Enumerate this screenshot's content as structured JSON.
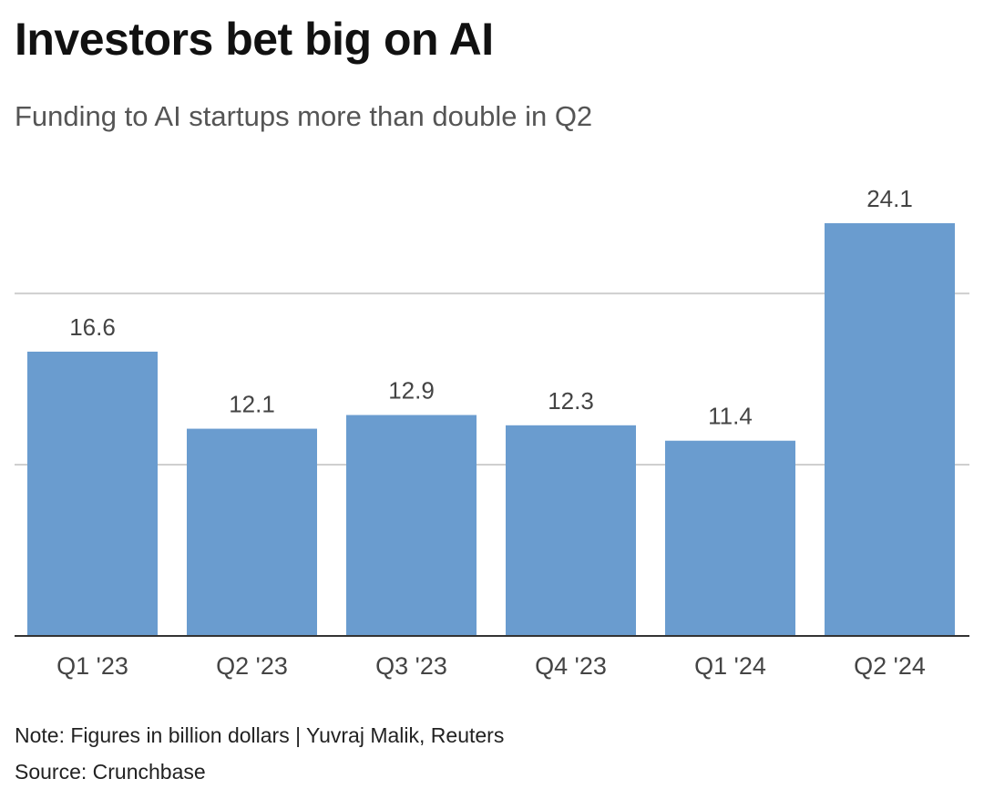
{
  "header": {
    "title": "Investors bet big on AI",
    "subtitle": "Funding to AI startups more than double in Q2"
  },
  "footer": {
    "note": "Note: Figures in billion dollars | Yuvraj Malik, Reuters",
    "source": "Source: Crunchbase"
  },
  "colors": {
    "bar": "#6a9ccf",
    "gridline": "#cfcfcf",
    "axis": "#333333"
  },
  "chart_data": {
    "type": "bar",
    "title": "Investors bet big on AI",
    "subtitle": "Funding to AI startups more than double in Q2",
    "categories": [
      "Q1 '23",
      "Q2 '23",
      "Q3 '23",
      "Q4 '23",
      "Q1 '24",
      "Q2 '24"
    ],
    "values": [
      16.6,
      12.1,
      12.9,
      12.3,
      11.4,
      24.1
    ],
    "value_labels": [
      "16.6",
      "12.1",
      "12.9",
      "12.3",
      "11.4",
      "24.1"
    ],
    "xlabel": "",
    "ylabel": "",
    "ylim": [
      0,
      24.1
    ],
    "gridlines": [
      10,
      20
    ],
    "show_y_tick_labels": false,
    "legend": "none"
  }
}
